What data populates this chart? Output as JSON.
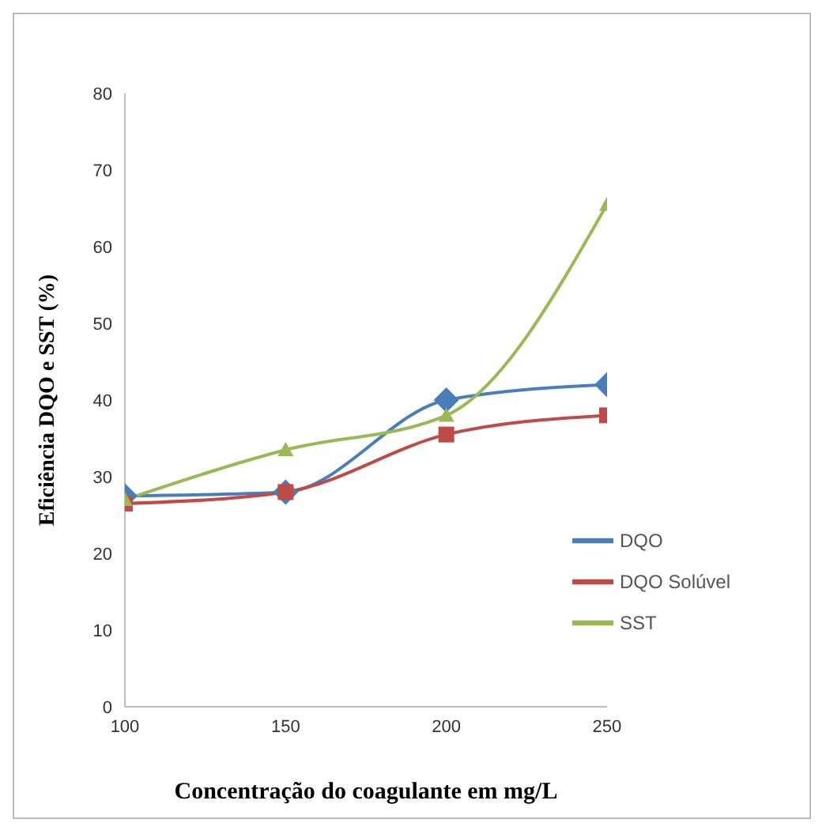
{
  "chart_data": {
    "type": "line",
    "xlabel": "Concentração do coagulante em mg/L",
    "ylabel": "Eficiência DQO e SST (%)",
    "x": [
      100,
      150,
      200,
      250
    ],
    "xlim": [
      100,
      250
    ],
    "xticks": [
      100,
      150,
      200,
      250
    ],
    "ylim": [
      0,
      80
    ],
    "yticks": [
      0,
      10,
      20,
      30,
      40,
      50,
      60,
      70,
      80
    ],
    "grid": false,
    "legend": "right",
    "series": [
      {
        "name": "DQO",
        "color": "#4a7ebb",
        "marker": "diamond",
        "values": [
          27.5,
          28,
          40,
          42
        ]
      },
      {
        "name": "DQO Solúvel",
        "color": "#be4b48",
        "marker": "square",
        "values": [
          26.5,
          28,
          35.5,
          38
        ]
      },
      {
        "name": "SST",
        "color": "#98b954",
        "marker": "triangle",
        "values": [
          27,
          33.5,
          38,
          65.5
        ]
      }
    ]
  }
}
